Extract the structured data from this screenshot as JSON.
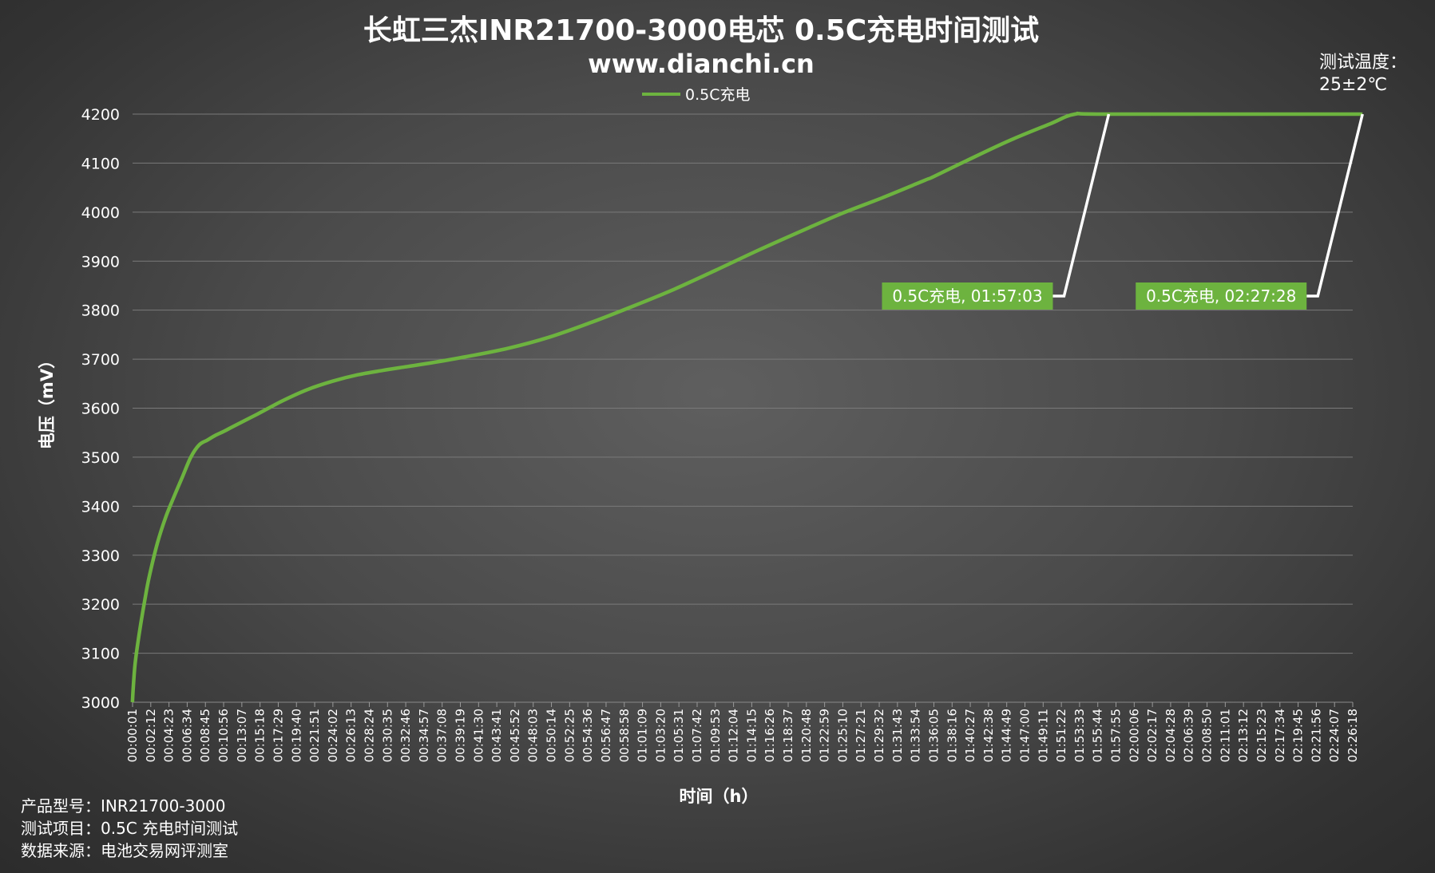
{
  "chart_data": {
    "type": "line",
    "title": "长虹三杰INR21700-3000电芯 0.5C充电时间测试",
    "subtitle": "www.dianchi.cn",
    "xlabel": "时间（h）",
    "ylabel": "电压（mV）",
    "ylim": [
      3000,
      4200
    ],
    "y_ticks": [
      3000,
      3100,
      3200,
      3300,
      3400,
      3500,
      3600,
      3700,
      3800,
      3900,
      4000,
      4100,
      4200
    ],
    "grid": "horizontal",
    "legend": "top-center",
    "x_tick_labels": [
      "00:00:01",
      "00:02:12",
      "00:04:23",
      "00:06:34",
      "00:08:45",
      "00:10:56",
      "00:13:07",
      "00:15:18",
      "00:17:29",
      "00:19:40",
      "00:21:51",
      "00:24:02",
      "00:26:13",
      "00:28:24",
      "00:30:35",
      "00:32:46",
      "00:34:57",
      "00:37:08",
      "00:39:19",
      "00:41:30",
      "00:43:41",
      "00:45:52",
      "00:48:03",
      "00:50:14",
      "00:52:25",
      "00:54:36",
      "00:56:47",
      "00:58:58",
      "01:01:09",
      "01:03:20",
      "01:05:31",
      "01:07:42",
      "01:09:53",
      "01:12:04",
      "01:14:15",
      "01:16:26",
      "01:18:37",
      "01:20:48",
      "01:22:59",
      "01:25:10",
      "01:27:21",
      "01:29:32",
      "01:31:43",
      "01:33:54",
      "01:36:05",
      "01:38:16",
      "01:40:27",
      "01:42:38",
      "01:44:49",
      "01:47:00",
      "01:49:11",
      "01:51:22",
      "01:53:33",
      "01:55:44",
      "01:57:55",
      "02:00:06",
      "02:02:17",
      "02:04:28",
      "02:06:39",
      "02:08:50",
      "02:11:01",
      "02:13:12",
      "02:15:23",
      "02:17:34",
      "02:19:45",
      "02:21:56",
      "02:24:07",
      "02:26:18"
    ],
    "series": [
      {
        "name": "0.5C充电",
        "color": "#6db33f",
        "x_minutes": [
          0,
          0.1,
          0.3,
          0.6,
          1.0,
          1.5,
          2.0,
          3.0,
          4.0,
          5.0,
          6.0,
          7.0,
          8.0,
          9.0,
          10.0,
          11.0,
          12.0,
          15.0,
          18.0,
          21.0,
          24.0,
          27.0,
          30.0,
          33.0,
          36.0,
          40.0,
          45.0,
          50.0,
          55.0,
          60.0,
          65.0,
          70.0,
          75.0,
          80.0,
          85.0,
          90.0,
          95.0,
          96.0,
          100.0,
          105.0,
          110.0,
          113.0,
          117.05,
          147.47
        ],
        "values": [
          3000,
          3030,
          3075,
          3115,
          3160,
          3210,
          3255,
          3325,
          3378,
          3420,
          3460,
          3500,
          3525,
          3535,
          3545,
          3553,
          3562,
          3588,
          3615,
          3638,
          3655,
          3668,
          3677,
          3685,
          3693,
          3705,
          3722,
          3745,
          3775,
          3808,
          3843,
          3882,
          3922,
          3960,
          3997,
          4030,
          4065,
          4072,
          4105,
          4145,
          4180,
          4200,
          4200,
          4200
        ]
      }
    ],
    "annotations": [
      {
        "text": "0.5C充电, 01:57:03",
        "x_minutes": 117.05,
        "y": 4200
      },
      {
        "text": "0.5C充电, 02:27:28",
        "x_minutes": 147.47,
        "y": 4200
      }
    ]
  },
  "info": {
    "model": "产品型号：INR21700-3000",
    "item": "测试项目：0.5C 充电时间测试",
    "source": "数据来源：电池交易网评测室"
  },
  "temperature": {
    "label": "测试温度：",
    "value": "25±2℃"
  }
}
